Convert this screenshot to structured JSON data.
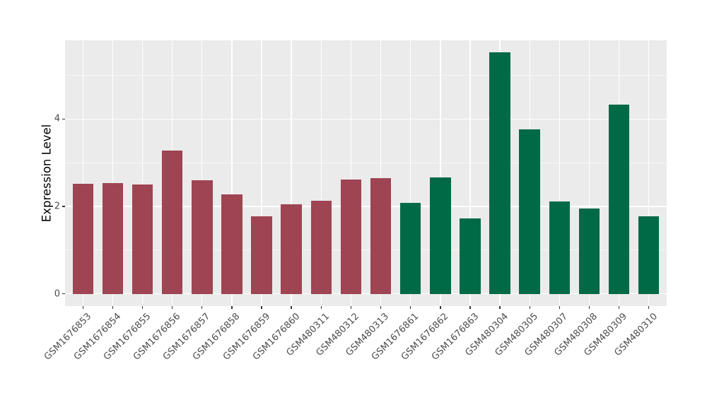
{
  "figure": {
    "background_color": "#FFFFFF",
    "panel_background_color": "#EBEBEB",
    "grid_major_color": "#FFFFFF",
    "grid_minor_color": "rgba(255,255,255,0.55)",
    "axis_text_color": "#4D4D4D",
    "tick_mark_color": "#333333"
  },
  "chart_data": {
    "type": "bar",
    "title": "",
    "xlabel": "",
    "ylabel": "Expression Level",
    "categories": [
      "GSM1676853",
      "GSM1676854",
      "GSM1676855",
      "GSM1676856",
      "GSM1676857",
      "GSM1676858",
      "GSM1676859",
      "GSM1676860",
      "GSM480311",
      "GSM480312",
      "GSM480313",
      "GSM1676861",
      "GSM1676862",
      "GSM1676863",
      "GSM480304",
      "GSM480305",
      "GSM480307",
      "GSM480308",
      "GSM480309",
      "GSM480310"
    ],
    "values": [
      2.52,
      2.53,
      2.5,
      3.27,
      2.6,
      2.27,
      1.77,
      2.05,
      2.13,
      2.62,
      2.64,
      2.08,
      2.66,
      1.73,
      5.52,
      3.76,
      2.12,
      1.95,
      4.33,
      1.78
    ],
    "bar_colors": [
      "#9E4452",
      "#9E4452",
      "#9E4452",
      "#9E4452",
      "#9E4452",
      "#9E4452",
      "#9E4452",
      "#9E4452",
      "#9E4452",
      "#9E4452",
      "#9E4452",
      "#006A46",
      "#006A46",
      "#006A46",
      "#006A46",
      "#006A46",
      "#006A46",
      "#006A46",
      "#006A46",
      "#006A46"
    ],
    "group_colors": {
      "maroon": "#9E4452",
      "green": "#006A46"
    },
    "ylim": [
      -0.28,
      5.8
    ],
    "yticks": [
      0,
      2,
      4
    ],
    "minor_yticks": [
      1,
      3,
      5
    ],
    "grid": true,
    "legend": "none",
    "bar_width_frac": 0.7,
    "x_label_angle_deg": 45
  }
}
